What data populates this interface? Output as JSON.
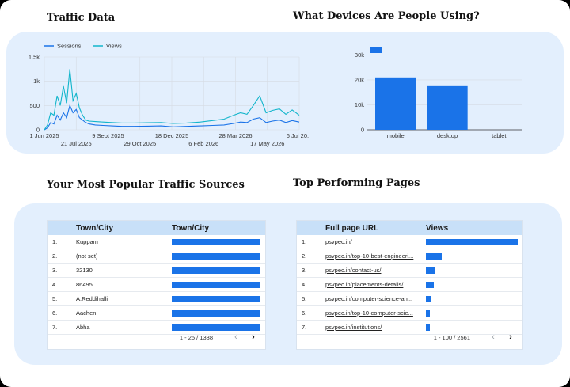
{
  "sections": {
    "traffic_title": "Traffic Data",
    "devices_title": "What Devices Are People Using?",
    "sources_title": "Your Most Popular Traffic Sources",
    "pages_title": "Top Performing Pages"
  },
  "colors": {
    "sessions": "#1a73e8",
    "views": "#12b5cb",
    "panel": "#e3effd",
    "header": "#c8e0f8"
  },
  "chart_data": [
    {
      "type": "line",
      "legend_position": "top-left",
      "grid": true,
      "x_ticks": [
        "1 Jun 2025",
        "21 Jul 2025",
        "9 Sept 2025",
        "29 Oct 2025",
        "18 Dec 2025",
        "6 Feb 2026",
        "28 Mar 2026",
        "17 May 2026",
        "6 Jul 20..."
      ],
      "y_ticks": [
        "0",
        "500",
        "1k",
        "1.5k"
      ],
      "ylim": [
        0,
        1500
      ],
      "x_range": [
        "2025-06-01",
        "2026-07-06"
      ],
      "series": [
        {
          "name": "Sessions",
          "x": [
            "2025-06-01",
            "2025-06-06",
            "2025-06-11",
            "2025-06-16",
            "2025-06-21",
            "2025-06-26",
            "2025-07-01",
            "2025-07-06",
            "2025-07-11",
            "2025-07-16",
            "2025-07-21",
            "2025-07-26",
            "2025-07-31",
            "2025-08-05",
            "2025-08-10",
            "2025-08-20",
            "2025-09-01",
            "2025-09-15",
            "2025-10-01",
            "2025-10-20",
            "2025-11-10",
            "2025-12-01",
            "2025-12-20",
            "2026-01-10",
            "2026-02-01",
            "2026-02-20",
            "2026-03-10",
            "2026-03-25",
            "2026-04-05",
            "2026-04-15",
            "2026-04-25",
            "2026-05-05",
            "2026-05-15",
            "2026-05-25",
            "2026-06-05",
            "2026-06-15",
            "2026-06-25",
            "2026-07-06"
          ],
          "values": [
            0,
            40,
            150,
            120,
            300,
            200,
            350,
            250,
            500,
            350,
            420,
            250,
            200,
            150,
            120,
            100,
            90,
            80,
            70,
            70,
            75,
            80,
            60,
            70,
            80,
            90,
            100,
            130,
            160,
            150,
            220,
            250,
            150,
            180,
            200,
            150,
            190,
            160
          ]
        },
        {
          "name": "Views",
          "x": [
            "2025-06-01",
            "2025-06-06",
            "2025-06-11",
            "2025-06-16",
            "2025-06-21",
            "2025-06-26",
            "2025-07-01",
            "2025-07-06",
            "2025-07-11",
            "2025-07-16",
            "2025-07-21",
            "2025-07-26",
            "2025-07-31",
            "2025-08-05",
            "2025-08-10",
            "2025-08-20",
            "2025-09-01",
            "2025-09-15",
            "2025-10-01",
            "2025-10-20",
            "2025-11-10",
            "2025-12-01",
            "2025-12-20",
            "2026-01-10",
            "2026-02-01",
            "2026-02-20",
            "2026-03-10",
            "2026-03-25",
            "2026-04-05",
            "2026-04-15",
            "2026-04-25",
            "2026-05-05",
            "2026-05-15",
            "2026-05-25",
            "2026-06-05",
            "2026-06-15",
            "2026-06-25",
            "2026-07-06"
          ],
          "values": [
            0,
            100,
            350,
            300,
            700,
            500,
            900,
            550,
            1250,
            600,
            750,
            450,
            300,
            200,
            180,
            170,
            160,
            150,
            140,
            140,
            145,
            150,
            130,
            140,
            160,
            190,
            220,
            300,
            350,
            320,
            500,
            700,
            350,
            400,
            430,
            320,
            410,
            300
          ]
        }
      ]
    },
    {
      "type": "bar",
      "grid": true,
      "categories": [
        "mobile",
        "desktop",
        "tablet"
      ],
      "values": [
        21000,
        17500,
        0
      ],
      "y_ticks": [
        "0",
        "10k",
        "20k",
        "30k"
      ],
      "ylim": [
        0,
        33000
      ]
    }
  ],
  "sources_table": {
    "col_header_1": "Town/City",
    "col_header_2": "Town/City",
    "rows": [
      {
        "idx": "1.",
        "name": "Kuppam",
        "value": 1.0
      },
      {
        "idx": "2.",
        "name": "(not set)",
        "value": 1.0
      },
      {
        "idx": "3.",
        "name": "32130",
        "value": 1.0
      },
      {
        "idx": "4.",
        "name": "86495",
        "value": 1.0
      },
      {
        "idx": "5.",
        "name": "A.Reddihalli",
        "value": 1.0
      },
      {
        "idx": "6.",
        "name": "Aachen",
        "value": 1.0
      },
      {
        "idx": "7.",
        "name": "Abha",
        "value": 1.0
      }
    ],
    "pager": "1 - 25 / 1338"
  },
  "pages_table": {
    "col_header_1": "Full page URL",
    "col_header_2": "Views",
    "rows": [
      {
        "idx": "1.",
        "name": "psvpec.in/",
        "value": 1.0
      },
      {
        "idx": "2.",
        "name": "psvpec.in/top-10-best-engineeri...",
        "value": 0.17
      },
      {
        "idx": "3.",
        "name": "psvpec.in/contact-us/",
        "value": 0.1
      },
      {
        "idx": "4.",
        "name": "psvpec.in/placements-details/",
        "value": 0.09
      },
      {
        "idx": "5.",
        "name": "psvpec.in/computer-science-an...",
        "value": 0.06
      },
      {
        "idx": "6.",
        "name": "psvpec.in/top-10-computer-scie...",
        "value": 0.045
      },
      {
        "idx": "7.",
        "name": "psvpec.in/institutions/",
        "value": 0.04
      }
    ],
    "pager": "1 - 100 / 2561"
  }
}
